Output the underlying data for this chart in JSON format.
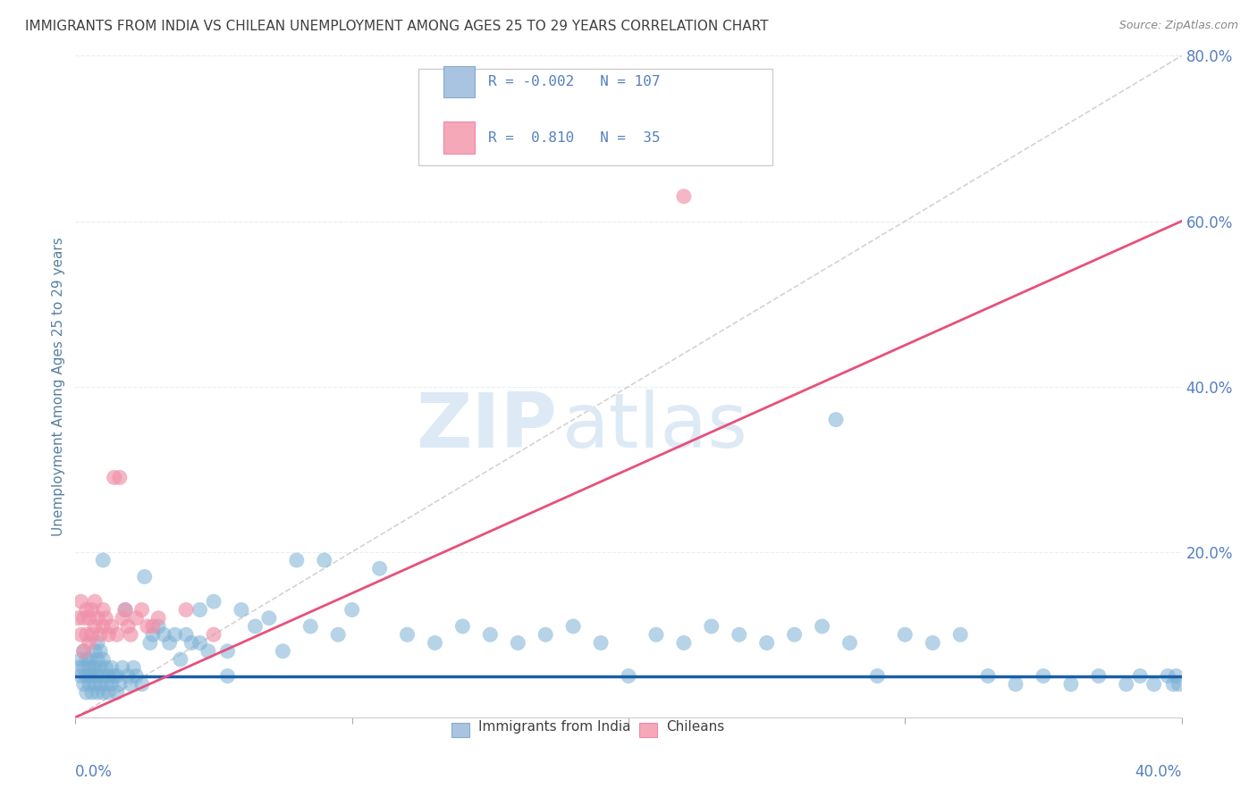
{
  "title": "IMMIGRANTS FROM INDIA VS CHILEAN UNEMPLOYMENT AMONG AGES 25 TO 29 YEARS CORRELATION CHART",
  "source": "Source: ZipAtlas.com",
  "ylabel": "Unemployment Among Ages 25 to 29 years",
  "xmin": 0.0,
  "xmax": 0.4,
  "ymin": 0.0,
  "ymax": 0.8,
  "yticks": [
    0.0,
    0.2,
    0.4,
    0.6,
    0.8
  ],
  "ytick_labels": [
    "",
    "20.0%",
    "40.0%",
    "60.0%",
    "80.0%"
  ],
  "legend_color1": "#a8c4e0",
  "legend_color2": "#f4a8b8",
  "india_R": -0.002,
  "india_N": 107,
  "chile_R": 0.81,
  "chile_N": 35,
  "scatter_color_india": "#7ab0d4",
  "scatter_color_chile": "#f090a8",
  "trendline_color_india": "#1a5fa8",
  "trendline_color_chile": "#e8507a",
  "diagonal_color": "#c8c8c8",
  "watermark_zip": "ZIP",
  "watermark_atlas": "atlas",
  "watermark_color": "#ddeaf5",
  "background_color": "#ffffff",
  "title_color": "#404040",
  "axis_label_color": "#5580a0",
  "tick_color": "#5580c0",
  "grid_color": "#e8eef4",
  "india_x": [
    0.001,
    0.002,
    0.002,
    0.003,
    0.003,
    0.003,
    0.004,
    0.004,
    0.004,
    0.005,
    0.005,
    0.005,
    0.005,
    0.006,
    0.006,
    0.006,
    0.007,
    0.007,
    0.007,
    0.008,
    0.008,
    0.008,
    0.008,
    0.009,
    0.009,
    0.009,
    0.01,
    0.01,
    0.01,
    0.011,
    0.011,
    0.012,
    0.012,
    0.013,
    0.013,
    0.014,
    0.015,
    0.015,
    0.016,
    0.017,
    0.018,
    0.019,
    0.02,
    0.021,
    0.022,
    0.024,
    0.025,
    0.027,
    0.028,
    0.03,
    0.032,
    0.034,
    0.036,
    0.038,
    0.04,
    0.042,
    0.045,
    0.048,
    0.05,
    0.055,
    0.06,
    0.065,
    0.07,
    0.075,
    0.08,
    0.085,
    0.09,
    0.095,
    0.1,
    0.11,
    0.12,
    0.13,
    0.14,
    0.15,
    0.16,
    0.17,
    0.18,
    0.19,
    0.2,
    0.21,
    0.22,
    0.23,
    0.24,
    0.25,
    0.26,
    0.27,
    0.28,
    0.29,
    0.3,
    0.31,
    0.32,
    0.33,
    0.34,
    0.35,
    0.36,
    0.37,
    0.38,
    0.385,
    0.39,
    0.395,
    0.397,
    0.398,
    0.399,
    0.275,
    0.045,
    0.055,
    0.01
  ],
  "india_y": [
    0.06,
    0.05,
    0.07,
    0.04,
    0.06,
    0.08,
    0.03,
    0.05,
    0.07,
    0.04,
    0.06,
    0.05,
    0.07,
    0.03,
    0.05,
    0.06,
    0.04,
    0.06,
    0.08,
    0.03,
    0.05,
    0.07,
    0.09,
    0.04,
    0.06,
    0.08,
    0.03,
    0.05,
    0.07,
    0.04,
    0.06,
    0.03,
    0.05,
    0.04,
    0.06,
    0.05,
    0.03,
    0.05,
    0.04,
    0.06,
    0.13,
    0.05,
    0.04,
    0.06,
    0.05,
    0.04,
    0.17,
    0.09,
    0.1,
    0.11,
    0.1,
    0.09,
    0.1,
    0.07,
    0.1,
    0.09,
    0.13,
    0.08,
    0.14,
    0.08,
    0.13,
    0.11,
    0.12,
    0.08,
    0.19,
    0.11,
    0.19,
    0.1,
    0.13,
    0.18,
    0.1,
    0.09,
    0.11,
    0.1,
    0.09,
    0.1,
    0.11,
    0.09,
    0.05,
    0.1,
    0.09,
    0.11,
    0.1,
    0.09,
    0.1,
    0.11,
    0.09,
    0.05,
    0.1,
    0.09,
    0.1,
    0.05,
    0.04,
    0.05,
    0.04,
    0.05,
    0.04,
    0.05,
    0.04,
    0.05,
    0.04,
    0.05,
    0.04,
    0.36,
    0.09,
    0.05,
    0.19
  ],
  "chile_x": [
    0.001,
    0.002,
    0.002,
    0.003,
    0.003,
    0.004,
    0.004,
    0.005,
    0.005,
    0.006,
    0.006,
    0.007,
    0.007,
    0.008,
    0.009,
    0.01,
    0.01,
    0.011,
    0.012,
    0.013,
    0.014,
    0.015,
    0.016,
    0.017,
    0.018,
    0.019,
    0.02,
    0.022,
    0.024,
    0.026,
    0.028,
    0.03,
    0.04,
    0.05,
    0.22
  ],
  "chile_y": [
    0.12,
    0.1,
    0.14,
    0.08,
    0.12,
    0.1,
    0.13,
    0.09,
    0.12,
    0.1,
    0.13,
    0.11,
    0.14,
    0.12,
    0.1,
    0.13,
    0.11,
    0.12,
    0.1,
    0.11,
    0.29,
    0.1,
    0.29,
    0.12,
    0.13,
    0.11,
    0.1,
    0.12,
    0.13,
    0.11,
    0.11,
    0.12,
    0.13,
    0.1,
    0.63
  ],
  "chile_trend_x0": 0.0,
  "chile_trend_y0": 0.0,
  "chile_trend_x1": 0.4,
  "chile_trend_y1": 0.6,
  "india_trend_y": 0.05
}
